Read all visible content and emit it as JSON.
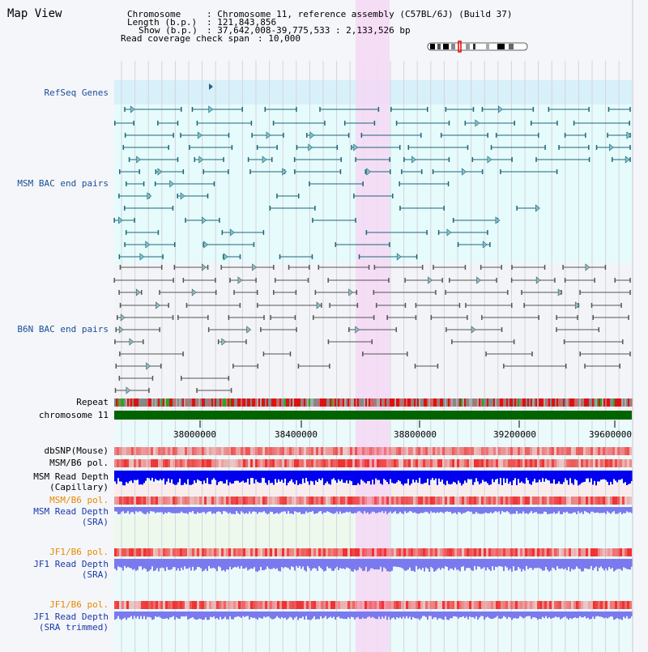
{
  "header": {
    "title": "Map View",
    "chromosome_label": "Chromosome    ",
    "chromosome_value": ": Chromosome 11, reference assembly (C57BL/6J) (Build 37)",
    "length_label": "Length (b.p.)",
    "length_value": ": 121,843,856",
    "show_label": "Show (b.p.)",
    "show_value": ": 37,642,008-39,775,533 : 2,133,526 bp",
    "coverage_label": "Read coverage check span",
    "coverage_value": ": 10,000"
  },
  "tracks": {
    "refseq": "RefSeq Genes",
    "msm_bac": "MSM BAC end pairs",
    "b6n_bac": "B6N BAC end pairs",
    "repeat": "Repeat",
    "chromosome": "chromosome 11",
    "dbsnp": "dbSNP(Mouse)",
    "msm_b6_pol_1": "MSM/B6 pol.",
    "msm_depth_cap_1": "MSM Read Depth",
    "msm_depth_cap_2": "(Capillary)",
    "msm_b6_pol_2": "MSM/B6 pol.",
    "msm_depth_sra_1": "MSM Read Depth",
    "msm_depth_sra_2": "(SRA)",
    "jf1_b6_pol_1": "JF1/B6 pol.",
    "jf1_depth_sra_1": "JF1 Read Depth",
    "jf1_depth_sra_2": "(SRA)",
    "jf1_b6_pol_2": "JF1/B6 pol.",
    "jf1_depth_trim_1": "JF1 Read Depth",
    "jf1_depth_trim_2": "(SRA trimmed)"
  },
  "axis": {
    "ticks": [
      "38000000",
      "38400000",
      "38800000",
      "39200000",
      "39600000"
    ]
  },
  "colors": {
    "teal_feature": "#1e6678",
    "gray_feature": "#555555",
    "highlight": "#f5d8f5",
    "refseq_band": "#d8f0fa",
    "msm_band": "#e6fbfb",
    "chrom_bar": "#006400",
    "capillary_blue": "#0000ee",
    "sra_blue": "#7a7aee",
    "pol_red": "#ee3333"
  }
}
